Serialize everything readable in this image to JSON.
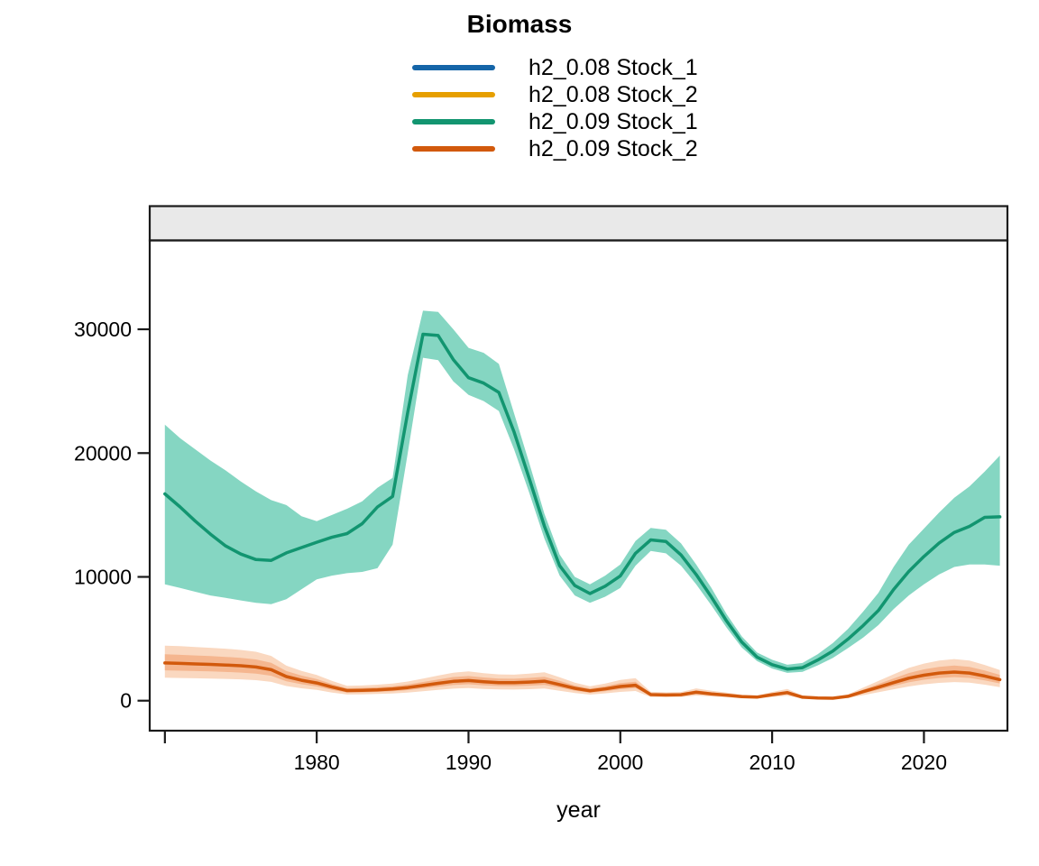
{
  "title": "Biomass",
  "legend": {
    "items": [
      {
        "label": "h2_0.08 Stock_1",
        "color": "#1565A8"
      },
      {
        "label": "h2_0.08 Stock_2",
        "color": "#E69F00"
      },
      {
        "label": "h2_0.09 Stock_1",
        "color": "#129570"
      },
      {
        "label": "h2_0.09 Stock_2",
        "color": "#D2590C"
      }
    ]
  },
  "chart_data": {
    "type": "line",
    "title": "Biomass",
    "xlabel": "year",
    "ylabel": "",
    "grid": false,
    "legend_position": "top-center",
    "frame_color": "#1A1A1A",
    "strip": {
      "label": "",
      "fill": "#E9E9E9"
    },
    "x_range": [
      1969,
      2025.5
    ],
    "y_range": [
      -2424,
      37179
    ],
    "x_ticks": [
      {
        "value": 1970,
        "label": ""
      },
      {
        "value": 1980,
        "label": "1980"
      },
      {
        "value": 1990,
        "label": "1990"
      },
      {
        "value": 2000,
        "label": "2000"
      },
      {
        "value": 2010,
        "label": "2010"
      },
      {
        "value": 2020,
        "label": "2020"
      }
    ],
    "y_ticks": [
      {
        "value": 0,
        "label": "0"
      },
      {
        "value": 10000,
        "label": "10000"
      },
      {
        "value": 20000,
        "label": "20000"
      },
      {
        "value": 30000,
        "label": "30000"
      }
    ],
    "years": [
      1970,
      1971,
      1972,
      1973,
      1974,
      1975,
      1976,
      1977,
      1978,
      1979,
      1980,
      1981,
      1982,
      1983,
      1984,
      1985,
      1986,
      1987,
      1988,
      1989,
      1990,
      1991,
      1992,
      1993,
      1994,
      1995,
      1996,
      1997,
      1998,
      1999,
      2000,
      2001,
      2002,
      2003,
      2004,
      2005,
      2006,
      2007,
      2008,
      2009,
      2010,
      2011,
      2012,
      2013,
      2014,
      2015,
      2016,
      2017,
      2018,
      2019,
      2020,
      2021,
      2022,
      2023,
      2024,
      2025
    ],
    "series": [
      {
        "name": "h2_0.08 Stock_1",
        "color": "#1565A8",
        "values": null,
        "note": "not separately visible; fully overlapped by h2_0.09 Stock_1"
      },
      {
        "name": "h2_0.08 Stock_2",
        "color": "#E69F00",
        "values": null,
        "note": "not separately visible; fully overlapped by h2_0.09 Stock_2"
      },
      {
        "name": "h2_0.09 Stock_1",
        "color": "#129570",
        "band_color": "#85D6C2",
        "values": [
          16700,
          15650,
          14500,
          13450,
          12500,
          11840,
          11400,
          11330,
          11940,
          12370,
          12800,
          13200,
          13500,
          14300,
          15650,
          16500,
          23300,
          29600,
          29500,
          27550,
          26090,
          25650,
          24900,
          21700,
          17950,
          14100,
          10900,
          9300,
          8650,
          9250,
          10080,
          11900,
          12990,
          12860,
          11770,
          10190,
          8370,
          6440,
          4730,
          3520,
          2910,
          2550,
          2670,
          3280,
          4000,
          4980,
          6070,
          7280,
          8980,
          10440,
          11650,
          12740,
          13590,
          14080,
          14810,
          14850
        ],
        "lo": [
          9400,
          9100,
          8800,
          8500,
          8300,
          8100,
          7900,
          7800,
          8200,
          9000,
          9800,
          10100,
          10300,
          10400,
          10700,
          12600,
          20000,
          27700,
          27500,
          25800,
          24700,
          24200,
          23400,
          20300,
          16800,
          13100,
          10100,
          8500,
          7900,
          8400,
          9100,
          10900,
          12100,
          11900,
          10900,
          9400,
          7700,
          5900,
          4300,
          3200,
          2600,
          2250,
          2330,
          2850,
          3450,
          4250,
          5100,
          6100,
          7400,
          8500,
          9400,
          10200,
          10800,
          11000,
          11000,
          10900
        ],
        "hi": [
          22300,
          21200,
          20300,
          19400,
          18600,
          17700,
          16900,
          16200,
          15800,
          14900,
          14500,
          15000,
          15500,
          16100,
          17200,
          18000,
          26300,
          31500,
          31400,
          30000,
          28500,
          28100,
          27200,
          23200,
          19200,
          15100,
          11800,
          10000,
          9400,
          10100,
          11000,
          12900,
          13960,
          13800,
          12700,
          11000,
          9100,
          7000,
          5200,
          3900,
          3300,
          2900,
          3050,
          3750,
          4650,
          5800,
          7200,
          8700,
          10800,
          12600,
          13900,
          15200,
          16400,
          17300,
          18500,
          19800
        ]
      },
      {
        "name": "h2_0.09 Stock_2",
        "color": "#D2590C",
        "band_outer_color": "#FAD8C0",
        "band_inner_color": "#F5B68F",
        "values": [
          3050,
          3010,
          2970,
          2930,
          2880,
          2820,
          2720,
          2500,
          1950,
          1650,
          1430,
          1100,
          820,
          840,
          880,
          950,
          1060,
          1230,
          1400,
          1560,
          1630,
          1530,
          1460,
          1450,
          1500,
          1580,
          1300,
          1000,
          800,
          950,
          1150,
          1250,
          490,
          460,
          480,
          680,
          550,
          450,
          330,
          290,
          480,
          650,
          280,
          220,
          200,
          350,
          730,
          1090,
          1460,
          1820,
          2060,
          2230,
          2310,
          2230,
          1990,
          1700
        ],
        "lo": [
          1850,
          1830,
          1810,
          1790,
          1760,
          1720,
          1660,
          1520,
          1180,
          1000,
          870,
          660,
          500,
          510,
          540,
          580,
          650,
          760,
          870,
          970,
          1020,
          950,
          910,
          900,
          930,
          980,
          800,
          620,
          490,
          590,
          710,
          780,
          300,
          280,
          300,
          420,
          340,
          280,
          200,
          180,
          300,
          400,
          170,
          140,
          120,
          220,
          450,
          680,
          920,
          1150,
          1320,
          1440,
          1500,
          1450,
          1290,
          1090
        ],
        "hi": [
          4450,
          4400,
          4330,
          4270,
          4200,
          4100,
          3950,
          3620,
          2830,
          2400,
          2070,
          1600,
          1200,
          1230,
          1290,
          1390,
          1550,
          1790,
          2030,
          2260,
          2360,
          2220,
          2120,
          2100,
          2180,
          2290,
          1890,
          1460,
          1170,
          1390,
          1680,
          1820,
          720,
          670,
          700,
          990,
          800,
          660,
          480,
          420,
          700,
          950,
          410,
          320,
          290,
          510,
          1060,
          1590,
          2130,
          2650,
          3000,
          3240,
          3360,
          3240,
          2890,
          2470
        ]
      }
    ]
  }
}
